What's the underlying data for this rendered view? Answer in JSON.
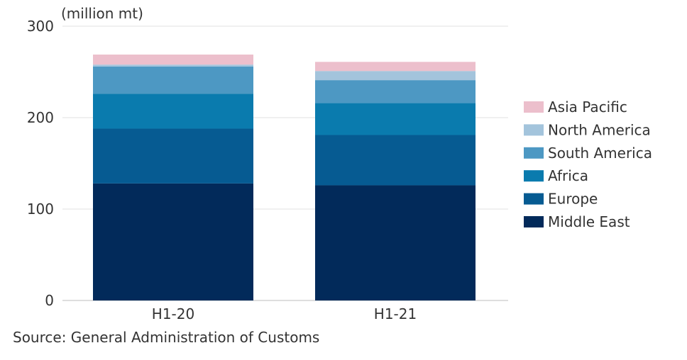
{
  "chart_data": {
    "type": "stacked-bar",
    "unit_label": "(million mt)",
    "categories": [
      "H1-20",
      "H1-21"
    ],
    "ylim": [
      0,
      300
    ],
    "yticks": [
      0,
      100,
      200,
      300
    ],
    "grid": true,
    "legend_position": "right",
    "series": [
      {
        "name": "Middle East",
        "color": "#022a5a",
        "values": [
          128,
          126
        ]
      },
      {
        "name": "Europe",
        "color": "#065b92",
        "values": [
          60,
          55
        ]
      },
      {
        "name": "Africa",
        "color": "#0a7bae",
        "values": [
          38,
          35
        ]
      },
      {
        "name": "South America",
        "color": "#4d98c3",
        "values": [
          30,
          25
        ]
      },
      {
        "name": "North America",
        "color": "#a3c4dc",
        "values": [
          2,
          10
        ]
      },
      {
        "name": "Asia Pacific",
        "color": "#ecbfcc",
        "values": [
          11,
          10
        ]
      }
    ]
  },
  "source": "Source: General Administration of Customs"
}
